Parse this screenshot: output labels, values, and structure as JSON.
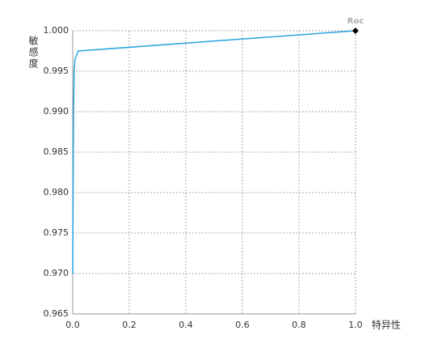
{
  "chart_data": {
    "type": "line",
    "x_label": "特异性",
    "y_label": "敏感度",
    "x": [
      0,
      0.001,
      0.002,
      0.003,
      0.005,
      0.008,
      0.02,
      1.0
    ],
    "series": [
      {
        "name": "Roc",
        "color": "#29a3dc",
        "values": [
          0.97,
          0.978,
          0.985,
          0.99,
          0.995,
          0.9965,
          0.9975,
          1.0
        ]
      }
    ],
    "end_marker": "diamond",
    "xlim": [
      0,
      1
    ],
    "xticks": [
      {
        "value": 0,
        "label": "0.0"
      },
      0.2,
      0.4,
      0.6,
      0.8,
      {
        "value": 1,
        "label": "1.0"
      }
    ],
    "ylim": [
      0.965,
      1
    ],
    "yticks": [
      0.965,
      {
        "value": 0.97,
        "label": "0.970"
      },
      0.975,
      {
        "value": 0.98,
        "label": "0.980"
      },
      0.985,
      {
        "value": 0.99,
        "label": "0.990"
      },
      0.995,
      {
        "value": 1,
        "label": "1.000"
      }
    ],
    "grid": true
  }
}
